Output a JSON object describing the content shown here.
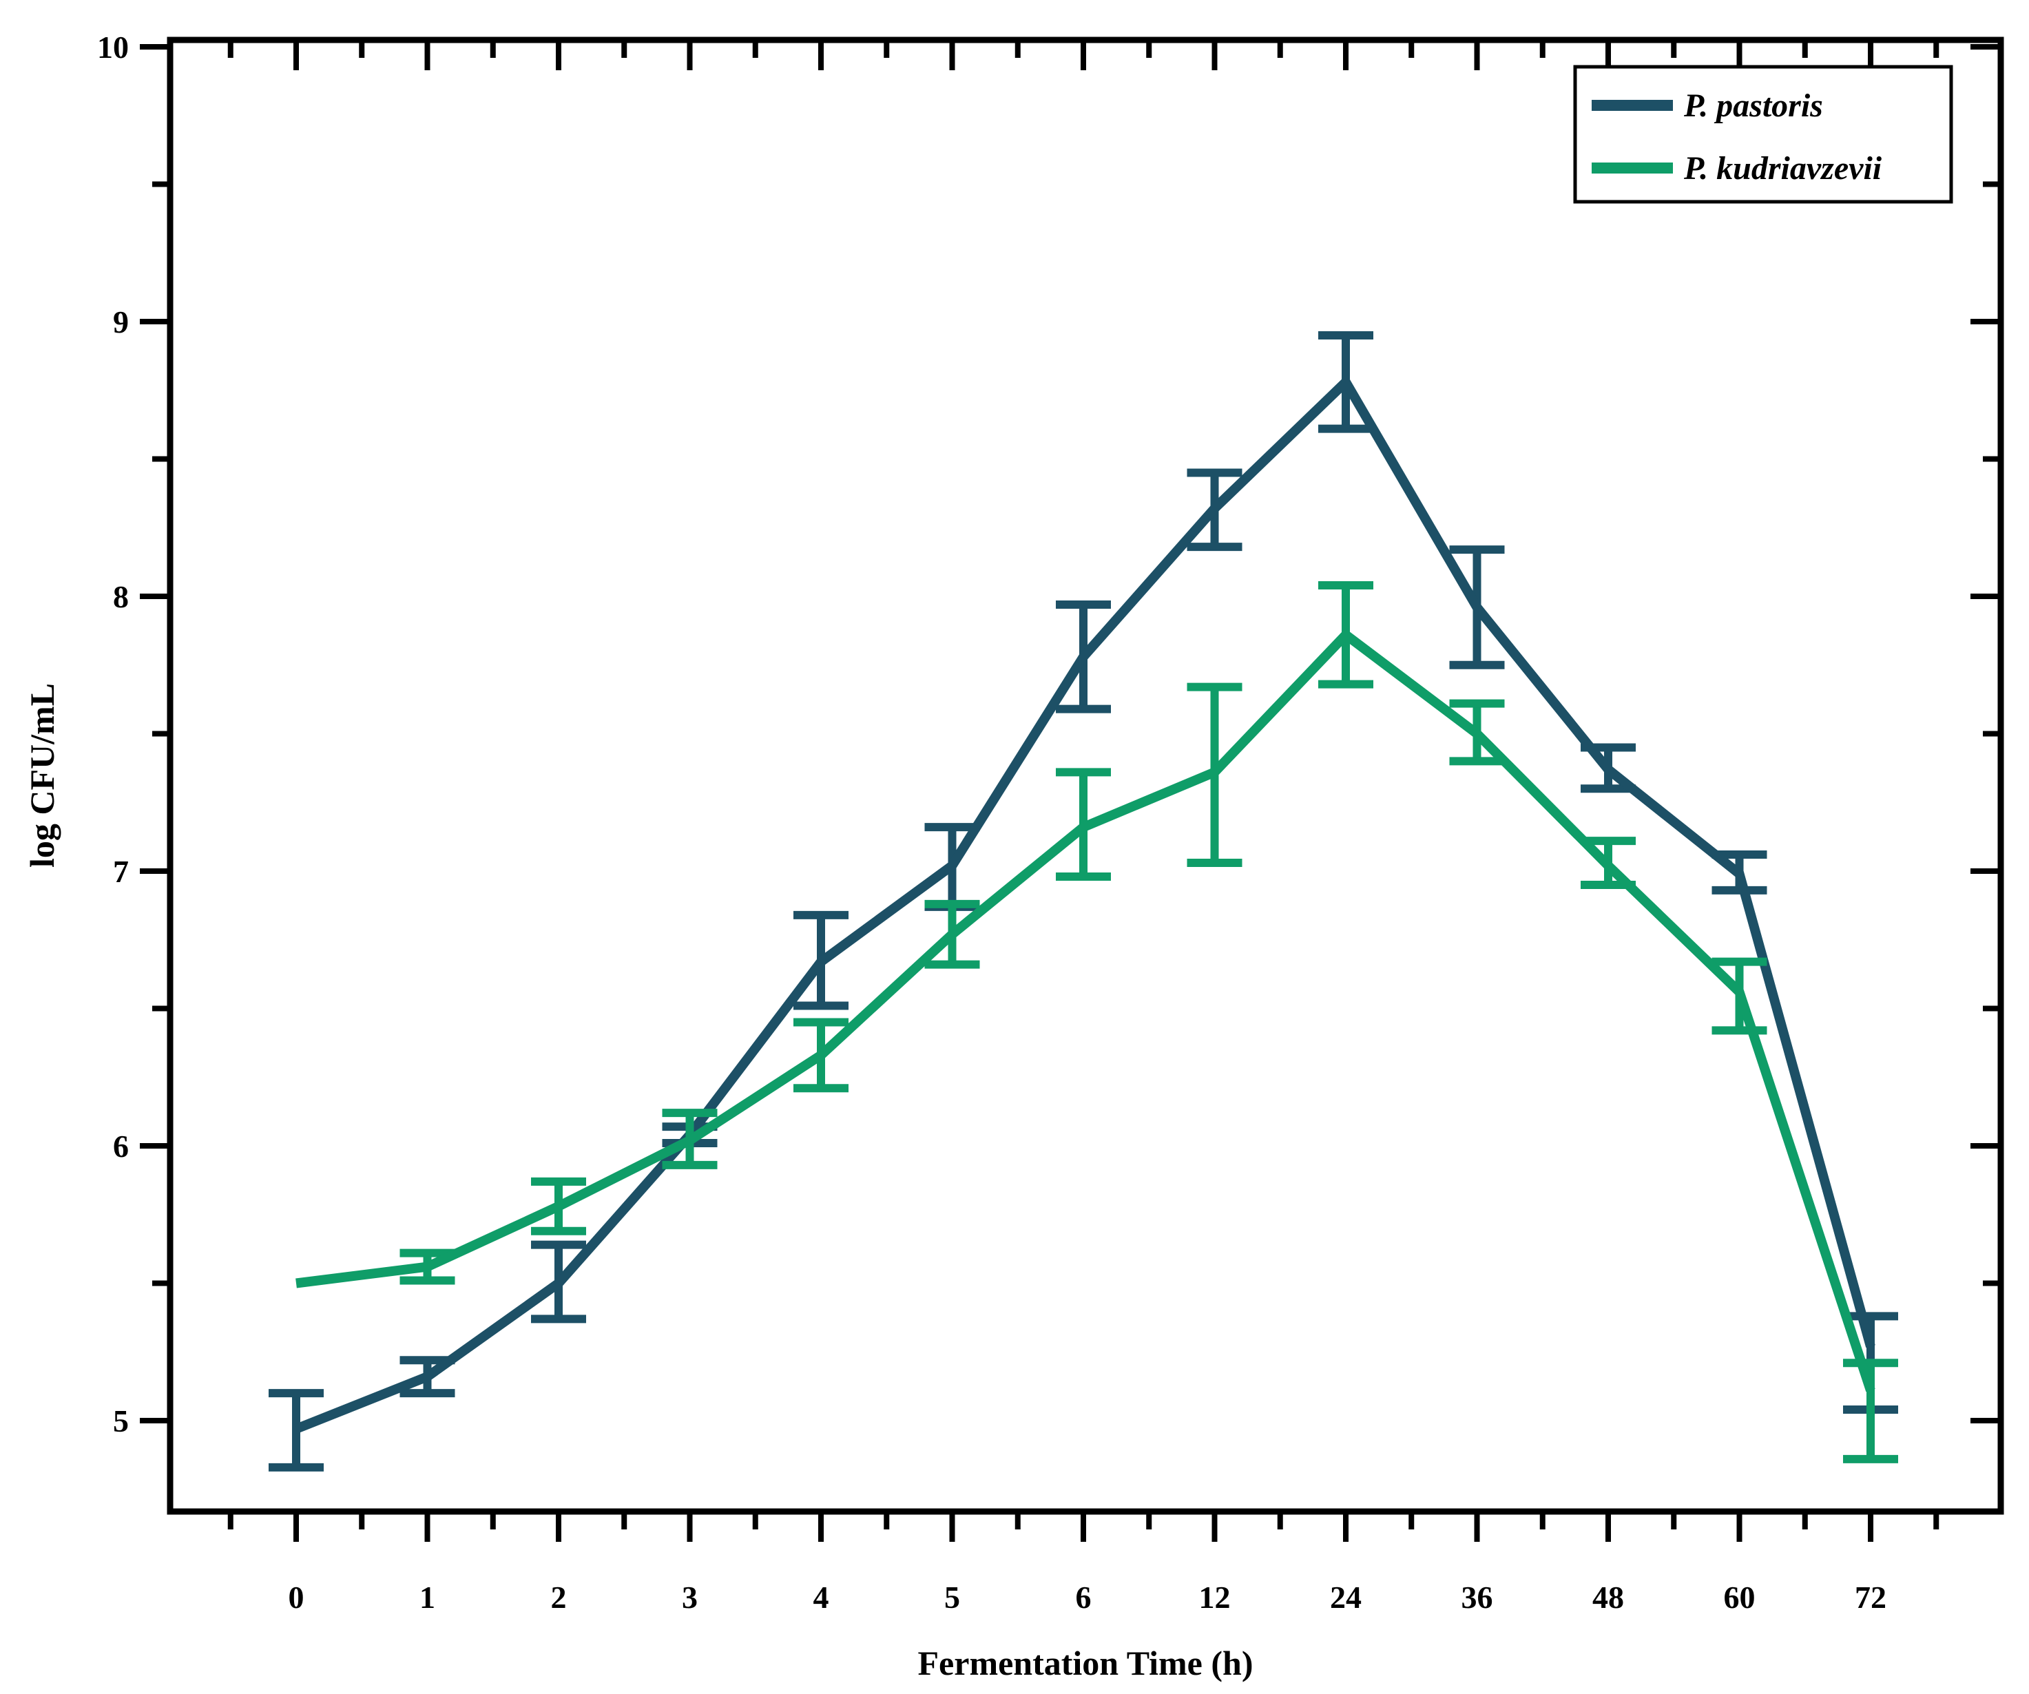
{
  "figure": {
    "background": "#ffffff",
    "frame_color": "#000000"
  },
  "chart_data": {
    "type": "line",
    "title": "",
    "xlabel": "Fermentation Time (h)",
    "ylabel": "log CFU/mL",
    "x_categories": [
      0,
      1,
      2,
      3,
      4,
      5,
      6,
      12,
      24,
      36,
      48,
      60,
      72
    ],
    "x_tick_labels": [
      "0",
      "1",
      "2",
      "3",
      "4",
      "5",
      "6",
      "12",
      "24",
      "36",
      "48",
      "60",
      "72"
    ],
    "y_major_ticks": [
      5,
      6,
      7,
      8,
      9,
      10
    ],
    "y_tick_labels": [
      "5",
      "6",
      "7",
      "8",
      "9",
      "10"
    ],
    "y_minor_ticks": [
      5.5,
      6.5,
      7.5,
      8.5,
      9.5
    ],
    "ylim": [
      4.67,
      10.03
    ],
    "grid": "off",
    "error_bars": true,
    "legend": {
      "position": "top-right",
      "border": true,
      "background": "#ffffff"
    },
    "series": [
      {
        "name": "P. pastoris",
        "color": "#1d5066",
        "points": [
          {
            "x": 0,
            "y": 4.97,
            "err_up": 0.13,
            "err_down": 0.14
          },
          {
            "x": 1,
            "y": 5.16,
            "err_up": 0.06,
            "err_down": 0.06
          },
          {
            "x": 2,
            "y": 5.5,
            "err_up": 0.14,
            "err_down": 0.13
          },
          {
            "x": 3,
            "y": 6.04,
            "err_up": 0.03,
            "err_down": 0.03
          },
          {
            "x": 4,
            "y": 6.67,
            "err_up": 0.17,
            "err_down": 0.16
          },
          {
            "x": 5,
            "y": 7.02,
            "err_up": 0.14,
            "err_down": 0.15
          },
          {
            "x": 6,
            "y": 7.78,
            "err_up": 0.19,
            "err_down": 0.19
          },
          {
            "x": 12,
            "y": 8.32,
            "err_up": 0.13,
            "err_down": 0.14
          },
          {
            "x": 24,
            "y": 8.78,
            "err_up": 0.17,
            "err_down": 0.17
          },
          {
            "x": 36,
            "y": 7.96,
            "err_up": 0.21,
            "err_down": 0.21
          },
          {
            "x": 48,
            "y": 7.37,
            "err_up": 0.08,
            "err_down": 0.07
          },
          {
            "x": 60,
            "y": 6.99,
            "err_up": 0.07,
            "err_down": 0.06
          },
          {
            "x": 72,
            "y": 5.27,
            "err_up": 0.11,
            "err_down": 0.23
          }
        ]
      },
      {
        "name": "P. kudriavzevii",
        "color": "#0f9d68",
        "points": [
          {
            "x": 0,
            "y": 5.5,
            "err_up": 0,
            "err_down": 0
          },
          {
            "x": 1,
            "y": 5.56,
            "err_up": 0.05,
            "err_down": 0.05
          },
          {
            "x": 2,
            "y": 5.78,
            "err_up": 0.09,
            "err_down": 0.09
          },
          {
            "x": 3,
            "y": 6.02,
            "err_up": 0.1,
            "err_down": 0.09
          },
          {
            "x": 4,
            "y": 6.33,
            "err_up": 0.12,
            "err_down": 0.12
          },
          {
            "x": 5,
            "y": 6.77,
            "err_up": 0.11,
            "err_down": 0.11
          },
          {
            "x": 6,
            "y": 7.16,
            "err_up": 0.2,
            "err_down": 0.18
          },
          {
            "x": 12,
            "y": 7.36,
            "err_up": 0.31,
            "err_down": 0.33
          },
          {
            "x": 24,
            "y": 7.86,
            "err_up": 0.18,
            "err_down": 0.18
          },
          {
            "x": 36,
            "y": 7.5,
            "err_up": 0.11,
            "err_down": 0.1
          },
          {
            "x": 48,
            "y": 7.02,
            "err_up": 0.09,
            "err_down": 0.07
          },
          {
            "x": 60,
            "y": 6.56,
            "err_up": 0.11,
            "err_down": 0.14
          },
          {
            "x": 72,
            "y": 5.11,
            "err_up": 0.1,
            "err_down": 0.25
          }
        ]
      }
    ]
  }
}
